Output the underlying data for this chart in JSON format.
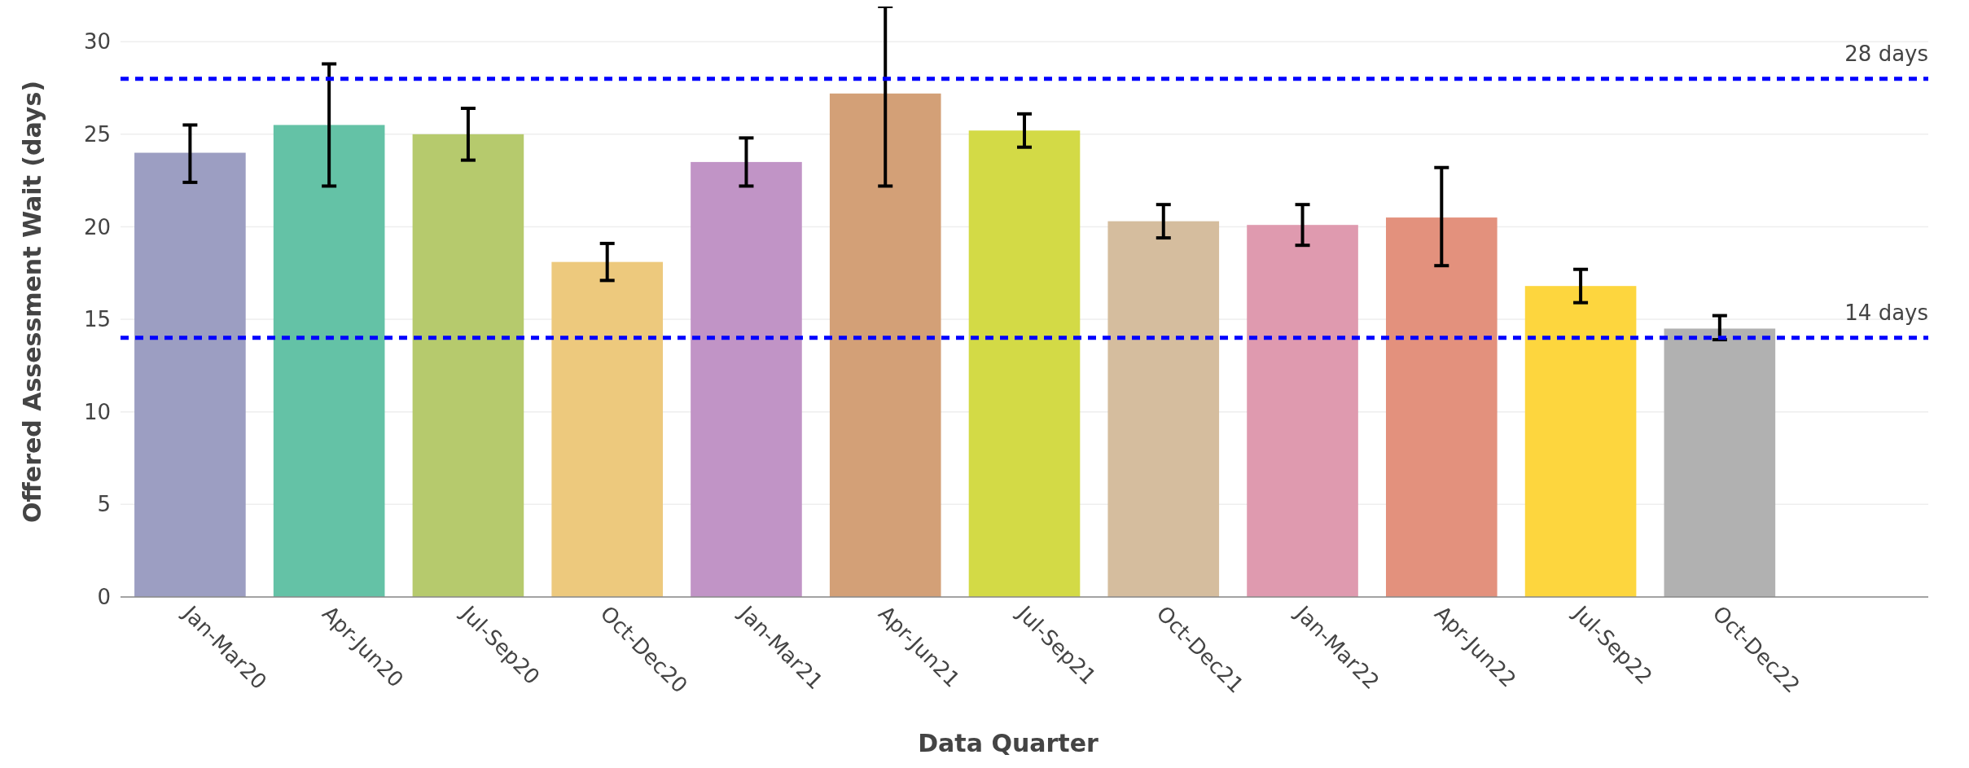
{
  "chart_data": {
    "type": "bar",
    "xlabel": "Data Quarter",
    "ylabel": "Offered Assessment Wait (days)",
    "categories": [
      "Jan-Mar20",
      "Apr-Jun20",
      "Jul-Sep20",
      "Oct-Dec20",
      "Jan-Mar21",
      "Apr-Jun21",
      "Jul-Sep21",
      "Oct-Dec21",
      "Jan-Mar22",
      "Apr-Jun22",
      "Jul-Sep22",
      "Oct-Dec22"
    ],
    "values": [
      24.0,
      25.5,
      25.0,
      18.1,
      23.5,
      27.2,
      25.2,
      20.3,
      20.1,
      20.5,
      16.8,
      14.5
    ],
    "colors": [
      "#9c9ec2",
      "#64c2a6",
      "#b6ca6d",
      "#edc97d",
      "#c194c6",
      "#d3a077",
      "#d3da46",
      "#d5bd9e",
      "#df9aaf",
      "#e3917d",
      "#fdd63e",
      "#b1b1b1"
    ],
    "errors": [
      [
        22.4,
        25.5
      ],
      [
        22.2,
        28.8
      ],
      [
        23.6,
        26.4
      ],
      [
        17.1,
        19.1
      ],
      [
        22.2,
        24.8
      ],
      [
        22.2,
        31.9
      ],
      [
        24.3,
        26.1
      ],
      [
        19.4,
        21.2
      ],
      [
        19.0,
        21.2
      ],
      [
        17.9,
        23.2
      ],
      [
        15.9,
        17.7
      ],
      [
        13.9,
        15.2
      ]
    ],
    "ylim": [
      0,
      31.9
    ],
    "yticks": [
      0,
      5,
      10,
      15,
      20,
      25,
      30
    ],
    "grid": "y",
    "ref_lines": [
      {
        "axis": "y",
        "value": 28,
        "label": "28 days",
        "color": "#0000ff",
        "line_style": "dashed"
      },
      {
        "axis": "y",
        "value": 14,
        "label": "14 days",
        "color": "#0000ff",
        "line_style": "dashed"
      }
    ]
  }
}
